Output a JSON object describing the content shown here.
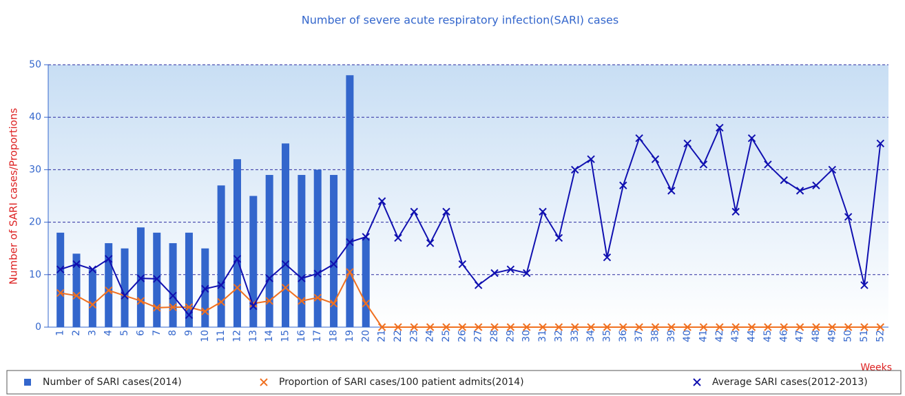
{
  "chart_data": {
    "type": "bar_line",
    "title": "Number of severe acute respiratory infection(SARI) cases",
    "y_axis_label": "Number of SARI cases/Proportions",
    "x_axis_label": "Weeks",
    "categories": [
      "1",
      "2",
      "3",
      "4",
      "5",
      "6",
      "7",
      "8",
      "9",
      "10",
      "11",
      "12",
      "13",
      "14",
      "15",
      "16",
      "17",
      "18",
      "19",
      "20",
      "21",
      "22",
      "23",
      "24",
      "25",
      "26",
      "27",
      "28",
      "29",
      "30",
      "31",
      "32",
      "33",
      "34",
      "35",
      "36",
      "37",
      "38",
      "39",
      "40",
      "41",
      "42",
      "43",
      "44",
      "45",
      "46",
      "47",
      "48",
      "49",
      "50",
      "51",
      "52"
    ],
    "series": [
      {
        "name": "Number of SARI cases(2014)",
        "kind": "bar",
        "color": "#3366cc",
        "values": [
          18,
          14,
          11,
          16,
          15,
          19,
          18,
          16,
          18,
          15,
          27,
          32,
          25,
          29,
          35,
          29,
          30,
          29,
          48,
          17,
          null,
          null,
          null,
          null,
          null,
          null,
          null,
          null,
          null,
          null,
          null,
          null,
          null,
          null,
          null,
          null,
          null,
          null,
          null,
          null,
          null,
          null,
          null,
          null,
          null,
          null,
          null,
          null,
          null,
          null,
          null,
          null
        ]
      },
      {
        "name": "Proportion of SARI cases/100 patient admits(2014)",
        "kind": "line",
        "color": "#f07020",
        "values": [
          6.5,
          6,
          4.3,
          7,
          6,
          5,
          3.7,
          3.8,
          3.8,
          3,
          4.8,
          7.5,
          4.5,
          5,
          7.5,
          5,
          5.6,
          4.5,
          10.5,
          4.5,
          0,
          0,
          0,
          0,
          0,
          0,
          0,
          0,
          0,
          0,
          0,
          0,
          0,
          0,
          0,
          0,
          0,
          0,
          0,
          0,
          0,
          0,
          0,
          0,
          0,
          0,
          0,
          0,
          0,
          0,
          0,
          0
        ]
      },
      {
        "name": "Average SARI cases(2012-2013)",
        "kind": "line",
        "color": "#1010b0",
        "values": [
          11,
          12,
          11,
          13,
          6,
          9.3,
          9.2,
          6,
          2.3,
          7.3,
          8,
          13,
          4,
          9.3,
          12,
          9.3,
          10.2,
          12,
          16.2,
          17.2,
          24,
          17,
          22,
          16,
          22,
          12,
          8,
          10.3,
          11,
          10.3,
          22,
          17,
          30,
          32,
          13.3,
          27,
          36,
          32,
          26,
          35,
          31,
          38,
          22,
          36,
          31,
          28,
          26,
          27,
          30,
          21,
          8,
          35
        ]
      }
    ],
    "ylim": [
      0,
      50
    ],
    "yticks": [
      0,
      10,
      20,
      30,
      40,
      50
    ],
    "grid": true
  }
}
